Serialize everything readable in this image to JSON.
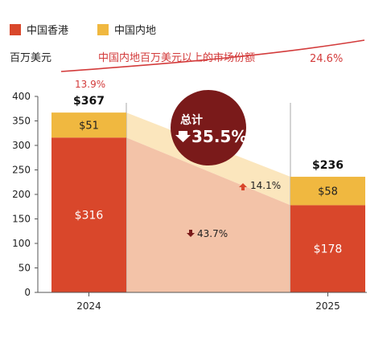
{
  "chart_data": {
    "type": "bar",
    "stacked": true,
    "categories": [
      "2024",
      "2025"
    ],
    "series": [
      {
        "name": "中国香港",
        "values": [
          316,
          178
        ],
        "color": "#d9472b"
      },
      {
        "name": "中国内地",
        "values": [
          51,
          58
        ],
        "color": "#f0b840"
      }
    ],
    "totals": [
      "$367",
      "$236"
    ],
    "segment_labels": [
      [
        "$316",
        "$178"
      ],
      [
        "$51",
        "$58"
      ]
    ],
    "ylabel": "百万美元",
    "ylim": [
      0,
      400
    ],
    "yticks": [
      0,
      50,
      100,
      150,
      200,
      250,
      300,
      350,
      400
    ],
    "legend_position": "top-left",
    "grid": false,
    "share_line": {
      "label": "中国内地百万美元以上的市场份额",
      "values": [
        "13.9%",
        "24.6%"
      ],
      "color": "#d33b3b"
    },
    "changes": {
      "total_title": "总计",
      "total_value": "35.5%",
      "total_direction": "down",
      "hk": "43.7%",
      "hk_direction": "down",
      "mainland": "14.1%",
      "mainland_direction": "up"
    }
  }
}
